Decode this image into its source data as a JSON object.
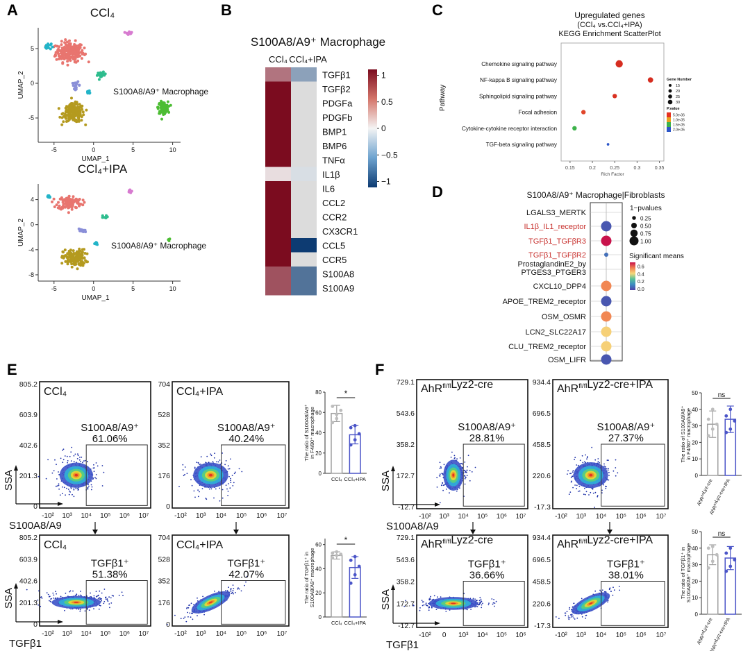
{
  "panel_letters": [
    "A",
    "B",
    "C",
    "D",
    "E",
    "F"
  ],
  "chart_data": [
    {
      "panel": "A",
      "type": "scatter",
      "plots": [
        {
          "title": "CCl₄",
          "annotation": "S100A8/A9⁺ Macrophage",
          "xlabel": "UMAP_1",
          "ylabel": "UMAP_2",
          "xticks": [
            -5,
            0,
            5,
            10
          ],
          "yticks": [
            5,
            0,
            -5
          ],
          "xlim": [
            -7,
            11
          ],
          "ylim": [
            -8.5,
            8
          ],
          "clusters": [
            {
              "color": "#e8756f",
              "center": [
                -3,
                4.5
              ],
              "spread": [
                1.6,
                1.3
              ],
              "n": 220
            },
            {
              "color": "#22b4c8",
              "center": [
                -5.8,
                5.3
              ],
              "spread": [
                0.4,
                0.4
              ],
              "n": 20
            },
            {
              "color": "#d77bd0",
              "center": [
                4.5,
                7.3
              ],
              "spread": [
                0.35,
                0.25
              ],
              "n": 12
            },
            {
              "color": "#2ebd8e",
              "center": [
                1,
                1.2
              ],
              "spread": [
                0.5,
                0.35
              ],
              "n": 25
            },
            {
              "color": "#8a8fd8",
              "center": [
                -2.2,
                -0.3
              ],
              "spread": [
                0.45,
                0.45
              ],
              "n": 18
            },
            {
              "color": "#b49a1f",
              "center": [
                -2.5,
                -4.3
              ],
              "spread": [
                1.2,
                1.2
              ],
              "n": 200
            },
            {
              "color": "#4cbd33",
              "center": [
                8.8,
                -3.5
              ],
              "spread": [
                0.55,
                0.75
              ],
              "n": 130
            },
            {
              "color": "#22b4c8",
              "center": [
                -0.6,
                -1.3
              ],
              "spread": [
                0.3,
                0.3
              ],
              "n": 10
            }
          ]
        },
        {
          "title": "CCl₄+IPA",
          "annotation": "S100A8/A9⁺ Macrophage",
          "xlabel": "UMAP_1",
          "ylabel": "UMAP_2",
          "xticks": [
            -5,
            0,
            5,
            10
          ],
          "yticks": [
            4,
            0,
            -4,
            -8
          ],
          "xlim": [
            -7,
            11
          ],
          "ylim": [
            -9,
            6.5
          ],
          "clusters": [
            {
              "color": "#e8756f",
              "center": [
                -3,
                3.5
              ],
              "spread": [
                1.4,
                1.0
              ],
              "n": 110
            },
            {
              "color": "#22b4c8",
              "center": [
                -5.7,
                4.5
              ],
              "spread": [
                0.3,
                0.3
              ],
              "n": 8
            },
            {
              "color": "#d77bd0",
              "center": [
                4.5,
                5.3
              ],
              "spread": [
                0.3,
                0.2
              ],
              "n": 8
            },
            {
              "color": "#2ebd8e",
              "center": [
                1.3,
                1.2
              ],
              "spread": [
                0.35,
                0.25
              ],
              "n": 7
            },
            {
              "color": "#8a8fd8",
              "center": [
                -1.5,
                -1.0
              ],
              "spread": [
                0.5,
                0.4
              ],
              "n": 12
            },
            {
              "color": "#b49a1f",
              "center": [
                -2.4,
                -5.3
              ],
              "spread": [
                1.3,
                1.2
              ],
              "n": 150
            },
            {
              "color": "#4cbd33",
              "center": [
                9.6,
                -2.4
              ],
              "spread": [
                0.15,
                0.15
              ],
              "n": 4
            },
            {
              "color": "#22b4c8",
              "center": [
                0.3,
                -3.0
              ],
              "spread": [
                0.3,
                0.3
              ],
              "n": 6
            }
          ]
        }
      ]
    },
    {
      "panel": "B",
      "type": "heatmap",
      "title": "S100A8/A9⁺ Macrophage",
      "columns": [
        "CCl₄",
        "CCl₄+IPA"
      ],
      "rows": [
        "TGFβ1",
        "TGFβ2",
        "PDGFa",
        "PDGFb",
        "BMP1",
        "BMP6",
        "TNFα",
        "IL1β",
        "IL6",
        "CCL2",
        "CCR2",
        "CX3CR1",
        "CCL5",
        "CCR5",
        "S100A8",
        "S100A9"
      ],
      "values": [
        [
          0.55,
          -0.45
        ],
        [
          1,
          0
        ],
        [
          1,
          0
        ],
        [
          1,
          0
        ],
        [
          1,
          0
        ],
        [
          1,
          0
        ],
        [
          1,
          0
        ],
        [
          0.1,
          -0.12
        ],
        [
          1,
          0
        ],
        [
          1,
          0
        ],
        [
          1,
          0
        ],
        [
          1,
          0
        ],
        [
          1,
          -1
        ],
        [
          1,
          0
        ],
        [
          0.7,
          -0.7
        ],
        [
          0.7,
          -0.7
        ]
      ],
      "colorbar_ticks": [
        1,
        0.5,
        0,
        -0.5,
        -1
      ],
      "colorbar_labels": [
        "1",
        "0.5",
        "0",
        "−0.5",
        "−1"
      ],
      "scale": [
        -1,
        1
      ],
      "colors": {
        "low": "#0d3b72",
        "mid": "#f4f4f4",
        "high": "#7b0c1f",
        "na": "#dcdcdc"
      }
    },
    {
      "panel": "C",
      "type": "scatter",
      "title_lines": [
        "Upregulated genes",
        "(CCl₄ vs.CCl₄+IPA)",
        "KEGG Enrichment ScatterPlot"
      ],
      "xlabel": "Rich Factor",
      "ylabel": "Pathway",
      "xticks": [
        0.15,
        0.2,
        0.25,
        0.3,
        0.35
      ],
      "xlim": [
        0.13,
        0.36
      ],
      "categories": [
        "Chemokine signaling pathway",
        "NF-kappa B signaling pathway",
        "Sphingolipid signaling pathway",
        "Focal adhesion",
        "Cytokine-cytokine receptor interaction",
        "TGF-beta signaling pathway"
      ],
      "points": [
        {
          "pathway": "Chemokine signaling pathway",
          "rich_factor": 0.26,
          "gene_number": 30,
          "color": "#d62d20"
        },
        {
          "pathway": "NF-kappa B signaling pathway",
          "rich_factor": 0.33,
          "gene_number": 20,
          "color": "#d62d20"
        },
        {
          "pathway": "Sphingolipid signaling pathway",
          "rich_factor": 0.25,
          "gene_number": 15,
          "color": "#d93020"
        },
        {
          "pathway": "Focal adhesion",
          "rich_factor": 0.18,
          "gene_number": 15,
          "color": "#e0452a"
        },
        {
          "pathway": "Cytokine-cytokine receptor interaction",
          "rich_factor": 0.16,
          "gene_number": 15,
          "color": "#3cb24a"
        },
        {
          "pathway": "TGF-beta signaling pathway",
          "rich_factor": 0.235,
          "gene_number": 5,
          "color": "#2b55c8"
        }
      ],
      "legend_size_title": "Gene Number",
      "legend_size_labels": [
        "15",
        "20",
        "25",
        "30"
      ],
      "legend_size_values": [
        15,
        20,
        25,
        30
      ],
      "legend_color_title": "P.value",
      "legend_color_labels": [
        "5.0e-06",
        "1.0e-05",
        "1.5e-05",
        "2.0e-05"
      ],
      "legend_colors": [
        "#e53020",
        "#e8a01e",
        "#3cb24a",
        "#2b55c8"
      ]
    },
    {
      "panel": "D",
      "type": "scatter",
      "title": "S100A8/A9⁺ Macrophage|Fibroblasts",
      "rows": [
        {
          "label": "LGALS3_MERTK",
          "highlight": false,
          "mean": null,
          "pvalue": 0
        },
        {
          "label": "IL1β_IL1_receptor",
          "highlight": true,
          "mean": 0.05,
          "pvalue": 1
        },
        {
          "label": "TGFβ1_TGFβR3",
          "highlight": true,
          "mean": 0.8,
          "pvalue": 1
        },
        {
          "label": "TGFβ1_TGFβR2",
          "highlight": true,
          "mean": 0.1,
          "pvalue": 0.25
        },
        {
          "label": [
            "ProstaglandinE2_by",
            "PTGES3_PTGER3"
          ],
          "highlight": false,
          "mean": null,
          "pvalue": 0
        },
        {
          "label": "CXCL10_DPP4",
          "highlight": false,
          "mean": 0.55,
          "pvalue": 1
        },
        {
          "label": "APOE_TREM2_receptor",
          "highlight": false,
          "mean": 0.05,
          "pvalue": 1
        },
        {
          "label": "OSM_OSMR",
          "highlight": false,
          "mean": 0.55,
          "pvalue": 1
        },
        {
          "label": "LCN2_SLC22A17",
          "highlight": false,
          "mean": 0.45,
          "pvalue": 1
        },
        {
          "label": "CLU_TREM2_receptor",
          "highlight": false,
          "mean": 0.45,
          "pvalue": 1
        },
        {
          "label": "OSM_LIFR",
          "highlight": false,
          "mean": 0.05,
          "pvalue": 1
        }
      ],
      "legend_size_title": "1−pvalues",
      "legend_size_labels": [
        "0.25",
        "0.50",
        "0.75",
        "1.00"
      ],
      "legend_size_values": [
        0.25,
        0.5,
        0.75,
        1.0
      ],
      "legend_color_title": "Significant means",
      "legend_color_labels": [
        "0.6",
        "0.4",
        "0.2",
        "0.0"
      ],
      "legend_color_values": [
        0.6,
        0.4,
        0.2,
        0.0
      ],
      "color_scale": [
        0,
        0.8
      ]
    },
    {
      "panel": "E",
      "type": "flow-cytometry",
      "xlabel_top": "S100A8/A9",
      "xlabel_bottom": "TGFβ1",
      "ylabel": "SSA",
      "xticks": [
        "-10²",
        "10³",
        "10⁴",
        "10⁵",
        "10⁶",
        "10⁷"
      ],
      "plots": [
        {
          "title": "CCl₄",
          "gate": "S100A8/A9⁺",
          "percent": "61.06%",
          "yticks": [
            "805.2",
            "603.9",
            "402.6",
            "201.3",
            "0"
          ],
          "ymax": 805.2,
          "shape": "compact"
        },
        {
          "title": "CCl₄+IPA",
          "gate": "S100A8/A9⁺",
          "percent": "40.24%",
          "yticks": [
            "704",
            "528",
            "352",
            "176",
            "0"
          ],
          "ymax": 704,
          "shape": "compact"
        },
        {
          "title": "CCl₄",
          "gate": "TGFβ1⁺",
          "percent": "51.38%",
          "yticks": [
            "805.2",
            "603.9",
            "402.6",
            "201.3",
            "0"
          ],
          "ymax": 805.2,
          "shape": "stretched"
        },
        {
          "title": "CCl₄+IPA",
          "gate": "TGFβ1⁺",
          "percent": "42.07%",
          "yticks": [
            "704",
            "528",
            "352",
            "176",
            "0"
          ],
          "ymax": 704,
          "shape": "diagonal"
        }
      ],
      "bars": [
        {
          "ylabel": [
            "The ratio of S100A8/A9⁺",
            "in F4/80⁺ macrophage"
          ],
          "yticks": [
            0,
            20,
            40,
            60,
            80
          ],
          "ymax": 80,
          "categories": [
            "CCl₄",
            "CCl₄+IPA"
          ],
          "values": [
            59,
            38
          ],
          "errors": [
            8,
            9
          ],
          "significance": "*",
          "points": [
            [
              50,
              58,
              62,
              66,
              54
            ],
            [
              28,
              33,
              39,
              45,
              47
            ]
          ],
          "colors": [
            "#a0a0a0",
            "#4b55c8"
          ]
        },
        {
          "ylabel": [
            "The ratio of TGFβ1⁺ in",
            "S100A8/A9⁺ macrophage"
          ],
          "yticks": [
            0,
            20,
            40,
            60
          ],
          "ymax": 65,
          "categories": [
            "CCl₄",
            "CCl₄+IPA"
          ],
          "values": [
            51,
            41
          ],
          "errors": [
            3,
            9
          ],
          "significance": "*",
          "points": [
            [
              49,
              51,
              52,
              53,
              54
            ],
            [
              28,
              35,
              42,
              47,
              50
            ]
          ],
          "colors": [
            "#a0a0a0",
            "#4b55c8"
          ]
        }
      ]
    },
    {
      "panel": "F",
      "type": "flow-cytometry",
      "xlabel_top": "S100A8/A9",
      "xlabel_bottom": "TGFβ1",
      "ylabel": "SSA",
      "xticks": [
        "-10²",
        "10³",
        "10⁴",
        "10⁵",
        "10⁶",
        "10⁷"
      ],
      "xticks_first": [
        "-10²",
        "0",
        "10³",
        "10⁴",
        "10⁵",
        "10⁶"
      ],
      "plots": [
        {
          "title": "AhR<fl/fl>Lyz2-cre",
          "gate": "S100A8/A9⁺",
          "percent": "28.81%",
          "yticks": [
            "729.1",
            "543.6",
            "358.2",
            "172.7",
            "-12.7"
          ],
          "ymax": 729.1,
          "shape": "tight"
        },
        {
          "title": "AhR<fl/fl>Lyz2-cre+IPA",
          "gate": "S100A8/A9⁺",
          "percent": "27.37%",
          "yticks": [
            "934.4",
            "696.5",
            "458.5",
            "220.6",
            "-17.3"
          ],
          "ymax": 934.4,
          "shape": "compact"
        },
        {
          "title": "AhR<fl/fl>Lyz2-cre",
          "gate": "TGFβ1⁺",
          "percent": "36.66%",
          "yticks": [
            "729.1",
            "543.6",
            "358.2",
            "172.7",
            "-12.7"
          ],
          "ymax": 729.1,
          "shape": "low"
        },
        {
          "title": "AhR<fl/fl>Lyz2-cre+IPA",
          "gate": "TGFβ1⁺",
          "percent": "38.01%",
          "yticks": [
            "934.4",
            "696.5",
            "458.5",
            "220.6",
            "-17.3"
          ],
          "ymax": 934.4,
          "shape": "diagonal"
        }
      ],
      "bars": [
        {
          "ylabel": [
            "The ratio of S100A8/A9⁺",
            "in F4/80⁺ macrophage"
          ],
          "yticks": [
            0,
            10,
            20,
            30,
            40,
            50
          ],
          "ymax": 50,
          "categories": [
            "AhR<fl/fl>Lyz-cre",
            "AhR<fl/fl>Lyz-cre+IPA"
          ],
          "values": [
            31,
            34
          ],
          "errors": [
            8,
            8
          ],
          "significance": "ns",
          "points": [
            [
              24,
              28,
              31,
              34,
              40
            ],
            [
              26,
              28,
              33,
              36,
              40
            ]
          ],
          "colors": [
            "#a0a0a0",
            "#4b55c8"
          ]
        },
        {
          "ylabel": [
            "The ratio of TGFβ1⁺ in",
            "S100A8/A9⁺ macrophage"
          ],
          "yticks": [
            0,
            10,
            20,
            30,
            40,
            50
          ],
          "ymax": 50,
          "categories": [
            "AhR<fl/fl>Lyz-cre",
            "AhR<fl/fl>Lyz-cre+IPA"
          ],
          "values": [
            36,
            34
          ],
          "errors": [
            6,
            7
          ],
          "significance": "ns",
          "points": [
            [
              28,
              32,
              36,
              40,
              41
            ],
            [
              26,
              29,
              33,
              37,
              40
            ]
          ],
          "colors": [
            "#a0a0a0",
            "#4b55c8"
          ]
        }
      ]
    }
  ]
}
